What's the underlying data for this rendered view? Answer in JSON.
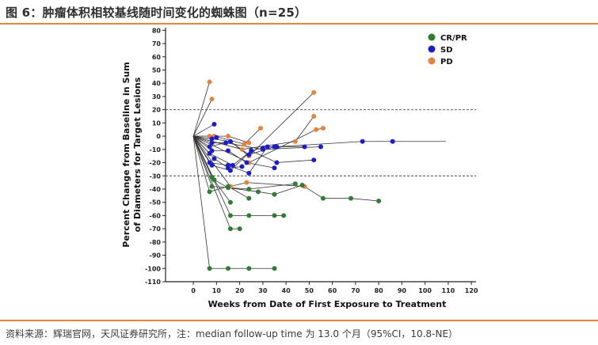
{
  "header": {
    "title": "图 6：肿瘤体积相较基线随时间变化的蜘蛛图（n=25）"
  },
  "footer": {
    "source": "资料来源：辉瑞官网，天风证券研究所，注：median  follow-up time 为 13.0 个月（95%CI，10.8-NE）"
  },
  "colors": {
    "accent_rule": "#e8823f",
    "CR/PR": "#2e7d32",
    "SD": "#1c1ccc",
    "PD": "#e8823f",
    "line": "#333333"
  },
  "chart_data": {
    "type": "line",
    "xlabel": "Weeks from Date of First Exposure to Treatment",
    "ylabel_lines": [
      "Percent Change from Baseline in Sum",
      "of Diameters for Target Lesions"
    ],
    "xlim": [
      -12,
      122
    ],
    "ylim": [
      -110,
      82
    ],
    "xticks": [
      0,
      10,
      20,
      30,
      40,
      50,
      60,
      70,
      80,
      90,
      100,
      110,
      120
    ],
    "yticks": [
      80,
      70,
      60,
      50,
      40,
      30,
      20,
      10,
      0,
      -10,
      -20,
      -30,
      -40,
      -50,
      -60,
      -70,
      -80,
      -90,
      -100,
      -110
    ],
    "reference_lines": [
      20,
      -30
    ],
    "legend": {
      "position": "top-right",
      "entries": [
        "CR/PR",
        "SD",
        "PD"
      ]
    },
    "series": [
      {
        "response": "PD",
        "points": [
          [
            7,
            41
          ]
        ]
      },
      {
        "response": "PD",
        "points": [
          [
            8,
            28
          ]
        ]
      },
      {
        "response": "PD",
        "points": [
          [
            7,
            0
          ],
          [
            15,
            0
          ],
          [
            24,
            -5
          ]
        ]
      },
      {
        "response": "PD",
        "points": [
          [
            9,
            0
          ],
          [
            22,
            -6
          ],
          [
            29,
            6
          ]
        ]
      },
      {
        "response": "PD",
        "points": [
          [
            16,
            -4
          ],
          [
            24,
            -15
          ],
          [
            52,
            33
          ]
        ]
      },
      {
        "response": "PD",
        "points": [
          [
            21,
            -10
          ],
          [
            44,
            -4
          ],
          [
            52,
            15
          ]
        ]
      },
      {
        "response": "PD",
        "points": [
          [
            16,
            -38
          ],
          [
            23,
            -35
          ],
          [
            48,
            -38
          ]
        ]
      },
      {
        "response": "PD",
        "points": [
          [
            24,
            -20
          ],
          [
            53,
            5
          ],
          [
            56,
            6
          ]
        ]
      },
      {
        "response": "SD",
        "points": [
          [
            9,
            9
          ]
        ]
      },
      {
        "response": "SD",
        "points": [
          [
            8,
            -2
          ],
          [
            10,
            -1
          ]
        ]
      },
      {
        "response": "SD",
        "points": [
          [
            8,
            -5
          ],
          [
            14,
            -5
          ],
          [
            30,
            -10
          ],
          [
            55,
            -8
          ]
        ]
      },
      {
        "response": "SD",
        "points": [
          [
            7,
            -8
          ],
          [
            16,
            -4
          ],
          [
            24,
            -14
          ],
          [
            35,
            -8
          ],
          [
            48,
            -8
          ]
        ]
      },
      {
        "response": "SD",
        "points": [
          [
            8,
            -11
          ],
          [
            15,
            -11
          ],
          [
            23,
            -20
          ],
          [
            35,
            -24
          ]
        ]
      },
      {
        "response": "SD",
        "points": [
          [
            7,
            -13
          ],
          [
            17,
            -22
          ],
          [
            25,
            -11
          ],
          [
            36,
            -20
          ],
          [
            52,
            -18
          ]
        ]
      },
      {
        "response": "SD",
        "points": [
          [
            7,
            -20
          ],
          [
            15,
            -22
          ],
          [
            24,
            -28
          ],
          [
            32,
            -8
          ],
          [
            36,
            -8
          ],
          [
            73,
            -4
          ],
          [
            86,
            -4
          ],
          [
            109,
            -4
          ]
        ]
      },
      {
        "response": "SD",
        "points": [
          [
            8,
            -22
          ],
          [
            16,
            -26
          ],
          [
            25,
            -11
          ],
          [
            30,
            -9
          ]
        ]
      },
      {
        "response": "SD",
        "points": [
          [
            9,
            -17
          ],
          [
            15,
            -24
          ],
          [
            21,
            -23
          ]
        ]
      },
      {
        "response": "CR/PR",
        "points": [
          [
            7,
            -42
          ],
          [
            15,
            -38
          ],
          [
            24,
            -47
          ]
        ]
      },
      {
        "response": "CR/PR",
        "points": [
          [
            8,
            -31
          ],
          [
            16,
            -50
          ]
        ]
      },
      {
        "response": "CR/PR",
        "points": [
          [
            8,
            -38
          ],
          [
            24,
            -40
          ],
          [
            44,
            -36
          ]
        ]
      },
      {
        "response": "CR/PR",
        "points": [
          [
            9,
            -33
          ],
          [
            15,
            -39
          ],
          [
            28,
            -42
          ],
          [
            35,
            -44
          ],
          [
            47,
            -37
          ],
          [
            56,
            -47
          ],
          [
            68,
            -47
          ],
          [
            80,
            -49
          ]
        ]
      },
      {
        "response": "CR/PR",
        "points": [
          [
            16,
            -60
          ],
          [
            24,
            -60
          ],
          [
            35,
            -60
          ],
          [
            39,
            -60
          ]
        ]
      },
      {
        "response": "CR/PR",
        "points": [
          [
            16,
            -70
          ],
          [
            20,
            -70
          ]
        ]
      },
      {
        "response": "CR/PR",
        "points": [
          [
            7,
            -100
          ],
          [
            15,
            -100
          ],
          [
            24,
            -100
          ],
          [
            35,
            -100
          ]
        ]
      }
    ]
  }
}
